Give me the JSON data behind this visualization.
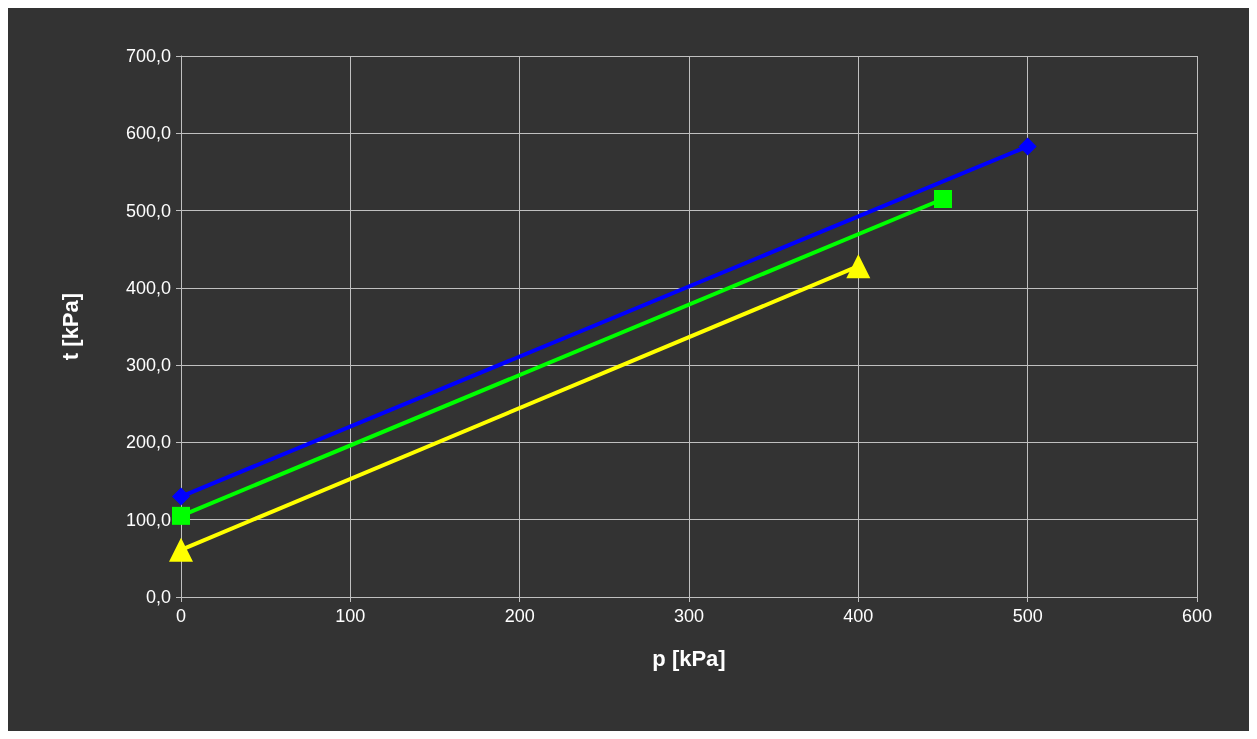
{
  "chart_data": {
    "type": "line",
    "xlabel": "p [kPa]",
    "ylabel": "t [kPa]",
    "xlim": [
      0,
      600
    ],
    "xticks": [
      0,
      100,
      200,
      300,
      400,
      500,
      600
    ],
    "ylim": [
      0,
      700
    ],
    "yticks": [
      {
        "value": 0,
        "label": "0,0"
      },
      {
        "value": 100,
        "label": "100,0"
      },
      {
        "value": 200,
        "label": "200,0"
      },
      {
        "value": 300,
        "label": "300,0"
      },
      {
        "value": 400,
        "label": "400,0"
      },
      {
        "value": 500,
        "label": "500,0"
      },
      {
        "value": 600,
        "label": "600,0"
      },
      {
        "value": 700,
        "label": "700,0"
      }
    ],
    "grid": true,
    "line_style": "solid",
    "series": [
      {
        "color": "#0000ff",
        "marker": "diamond",
        "x": [
          0,
          500
        ],
        "values": [
          130,
          583
        ]
      },
      {
        "color": "#00ff00",
        "marker": "square",
        "x": [
          0,
          450
        ],
        "values": [
          105,
          515
        ]
      },
      {
        "color": "#ffff00",
        "marker": "triangle",
        "x": [
          0,
          400
        ],
        "values": [
          61,
          428
        ]
      }
    ]
  }
}
